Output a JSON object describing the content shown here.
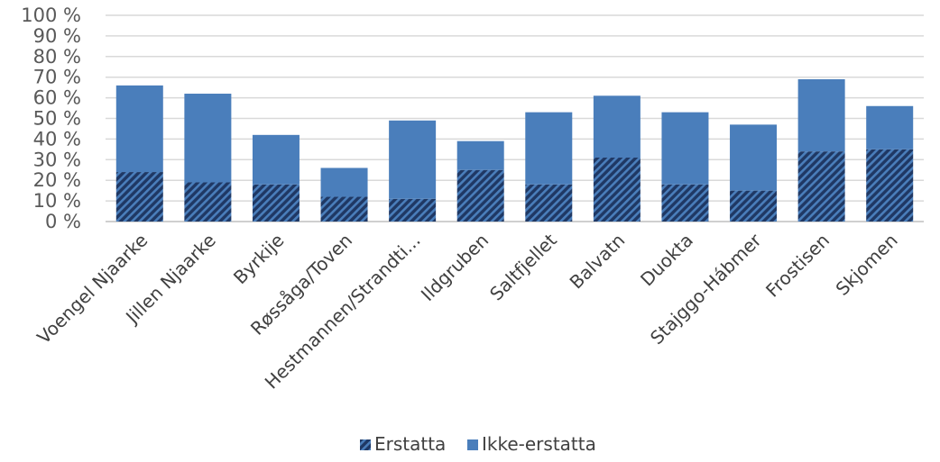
{
  "chart_data": {
    "type": "bar",
    "stacked": true,
    "categories": [
      "Voengel Njaarke",
      "Jillen Njaarke",
      "Byrkije",
      "Røssåga/Toven",
      "Hestmannen/Strandti...",
      "Ildgruben",
      "Saltfjellet",
      "Balvatn",
      "Duokta",
      "Stajggo-Hábmer",
      "Frostisen",
      "Skjomen"
    ],
    "series": [
      {
        "name": "Erstatta",
        "values": [
          24,
          19,
          18,
          12,
          11,
          25,
          18,
          31,
          18,
          15,
          34,
          35
        ],
        "color": "#1f3864",
        "pattern": "diagonal-hatch"
      },
      {
        "name": "Ikke-erstatta",
        "values": [
          42,
          43,
          24,
          14,
          38,
          14,
          35,
          30,
          35,
          32,
          35,
          21
        ],
        "color": "#4a7ebb"
      }
    ],
    "y_ticks": [
      "0 %",
      "10 %",
      "20 %",
      "30 %",
      "40 %",
      "50 %",
      "60 %",
      "70 %",
      "80 %",
      "90 %",
      "100 %"
    ],
    "ylim": [
      0,
      100
    ],
    "grid": true,
    "legend": "bottom-center",
    "title": "",
    "xlabel": "",
    "ylabel": ""
  }
}
